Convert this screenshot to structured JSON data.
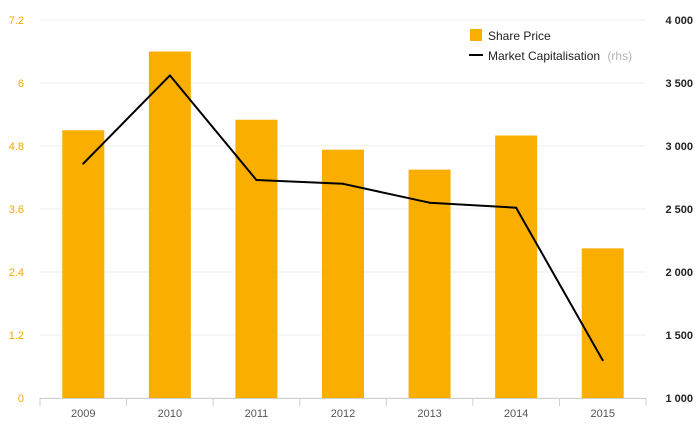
{
  "chart_data": {
    "type": "bar",
    "categories": [
      "2009",
      "2010",
      "2011",
      "2012",
      "2013",
      "2014",
      "2015"
    ],
    "series": [
      {
        "name": "Share Price",
        "type": "bar",
        "axis": "left",
        "color": "#f9ae00",
        "values": [
          5.1,
          6.6,
          5.3,
          4.73,
          4.35,
          5.0,
          2.85
        ]
      },
      {
        "name": "Market Capitalisation",
        "type": "line",
        "axis": "right",
        "color": "#000000",
        "values": [
          2860,
          3560,
          2730,
          2700,
          2550,
          2510,
          1300
        ]
      }
    ],
    "ylim_left": [
      0,
      7.2
    ],
    "ylim_right": [
      1000,
      4000
    ],
    "yticks_left": [
      "0",
      "1.2",
      "2.4",
      "3.6",
      "4.8",
      "6",
      "7.2"
    ],
    "yticks_right": [
      "1 000",
      "1 500",
      "2 000",
      "2 500",
      "3 000",
      "3 500",
      "4 000"
    ],
    "legend": {
      "position": "top-right",
      "bar_label": "Share Price",
      "line_label": "Market Capitalisation",
      "line_suffix": "(rhs)"
    },
    "grid": true,
    "colors": {
      "bar": "#f9ae00",
      "line": "#000000",
      "left_axis_text": "#f5a800",
      "grid": "#ececec"
    }
  }
}
